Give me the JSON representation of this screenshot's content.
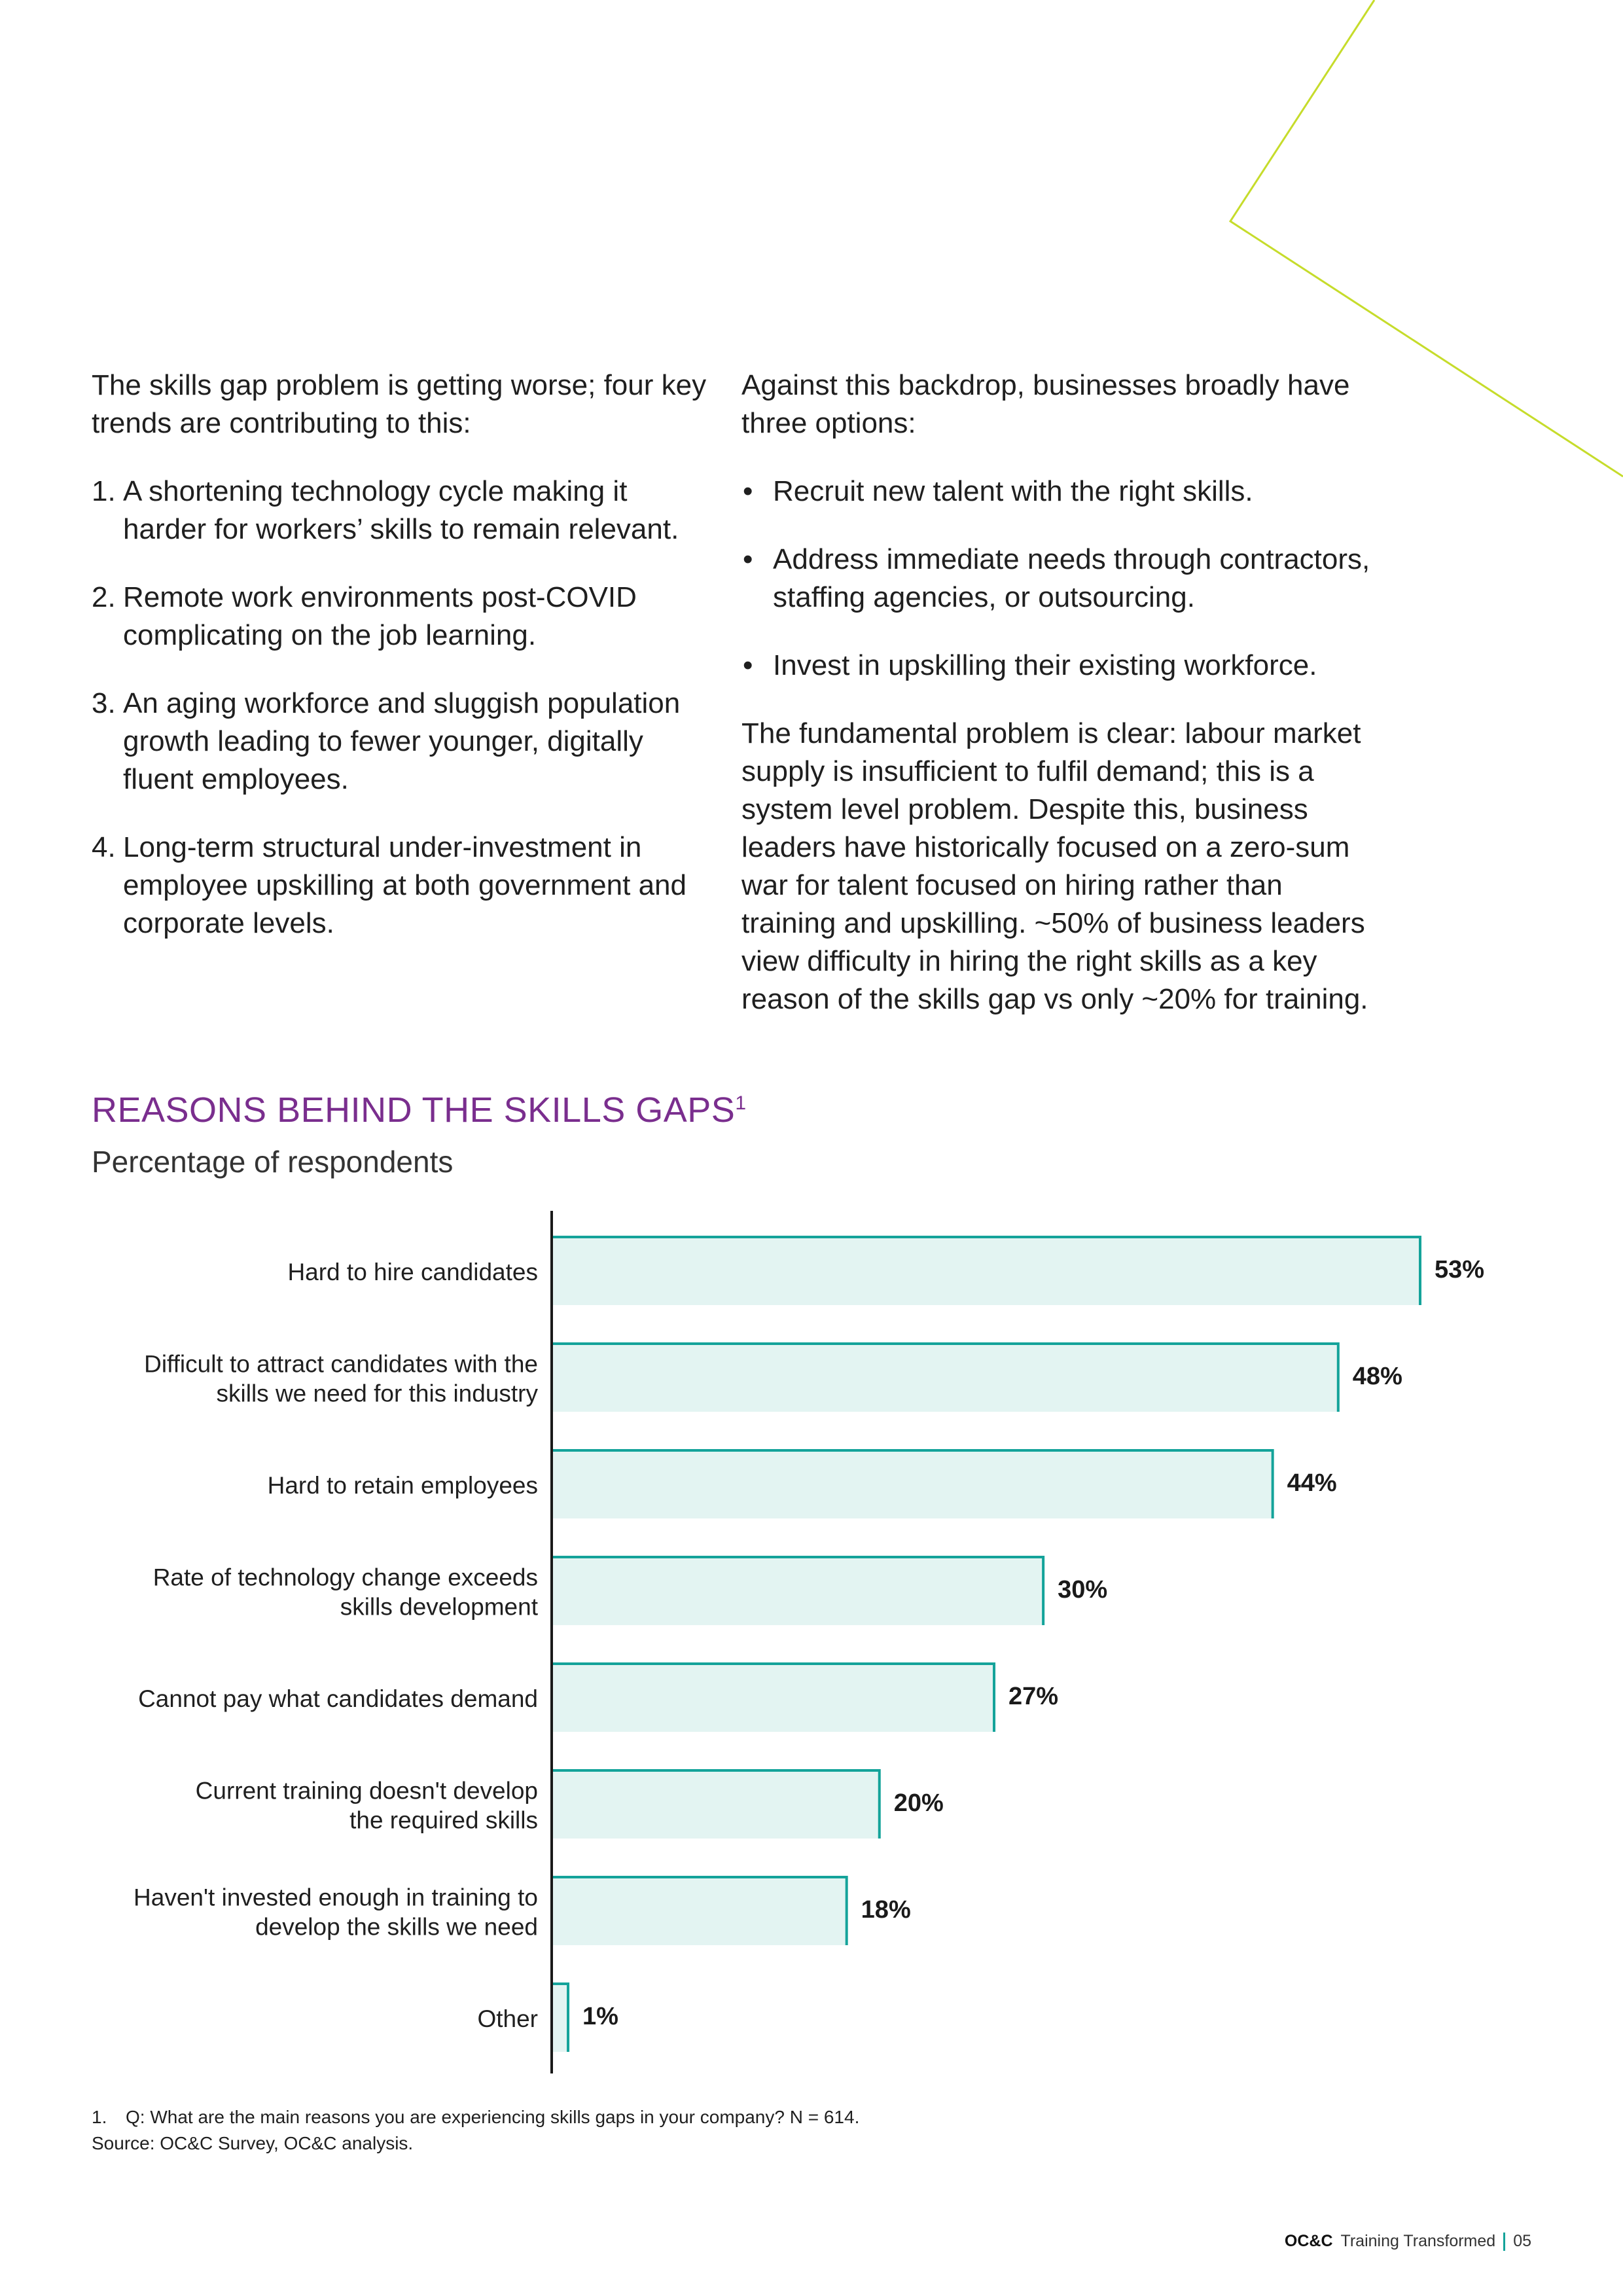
{
  "left_column": {
    "intro": "The skills gap problem is getting worse; four key trends are contributing to this:",
    "trends": [
      {
        "num": "1.",
        "text": "A shortening technology cycle making it harder for workers’ skills to remain relevant."
      },
      {
        "num": "2.",
        "text": "Remote work environments post-COVID complicating on the job learning."
      },
      {
        "num": "3.",
        "text": "An aging workforce and sluggish population growth leading to fewer younger, digitally fluent employees."
      },
      {
        "num": "4.",
        "text": "Long-term structural under-investment in employee upskilling at both government and corporate levels."
      }
    ]
  },
  "right_column": {
    "intro": "Against this backdrop, businesses broadly have three options:",
    "options": [
      "Recruit new talent with the right skills.",
      "Address immediate needs through contractors, staffing agencies, or outsourcing.",
      "Invest in upskilling their existing workforce."
    ],
    "conclusion": "The fundamental problem is clear: labour market supply is insufficient to fulfil demand; this is a system level problem. Despite this, business leaders have historically focused on a zero-sum war for talent focused on hiring rather than training and upskilling. ~50% of business leaders view difficulty in hiring the right skills as a key reason of the skills gap vs only ~20% for training."
  },
  "chart_data": {
    "type": "bar",
    "orientation": "horizontal",
    "title": "REASONS BEHIND THE SKILLS GAPS",
    "title_footnote_marker": "1",
    "subtitle": "Percentage of respondents",
    "categories": [
      [
        "Hard to hire candidates"
      ],
      [
        "Difficult to attract candidates with the",
        "skills we need for this industry"
      ],
      [
        "Hard to retain employees"
      ],
      [
        "Rate of technology change exceeds",
        "skills development"
      ],
      [
        "Cannot pay what candidates demand"
      ],
      [
        "Current training doesn't develop",
        "the required skills"
      ],
      [
        "Haven't invested enough in training to",
        "develop the skills we need"
      ],
      [
        "Other"
      ]
    ],
    "values": [
      53,
      48,
      44,
      30,
      27,
      20,
      18,
      1
    ],
    "value_labels": [
      "53%",
      "48%",
      "44%",
      "30%",
      "27%",
      "20%",
      "18%",
      "1%"
    ],
    "unit": "%",
    "xlim": [
      0,
      53
    ],
    "grid": false,
    "legend": "none",
    "colors": {
      "bar_fill": "#e3f4f2",
      "bar_outline": "#14a39a",
      "axis": "#1a1a1a",
      "title": "#7a2e8e"
    }
  },
  "footnotes": {
    "num": "1.",
    "question": "Q: What are the main reasons you are experiencing skills gaps in your company? N = 614.",
    "source": "Source: OC&C Survey, OC&C analysis."
  },
  "footer": {
    "brand": "OC&C",
    "title": "Training Transformed",
    "page": "05"
  },
  "decoration": {
    "accent_line_color": "#c6dc2b"
  }
}
